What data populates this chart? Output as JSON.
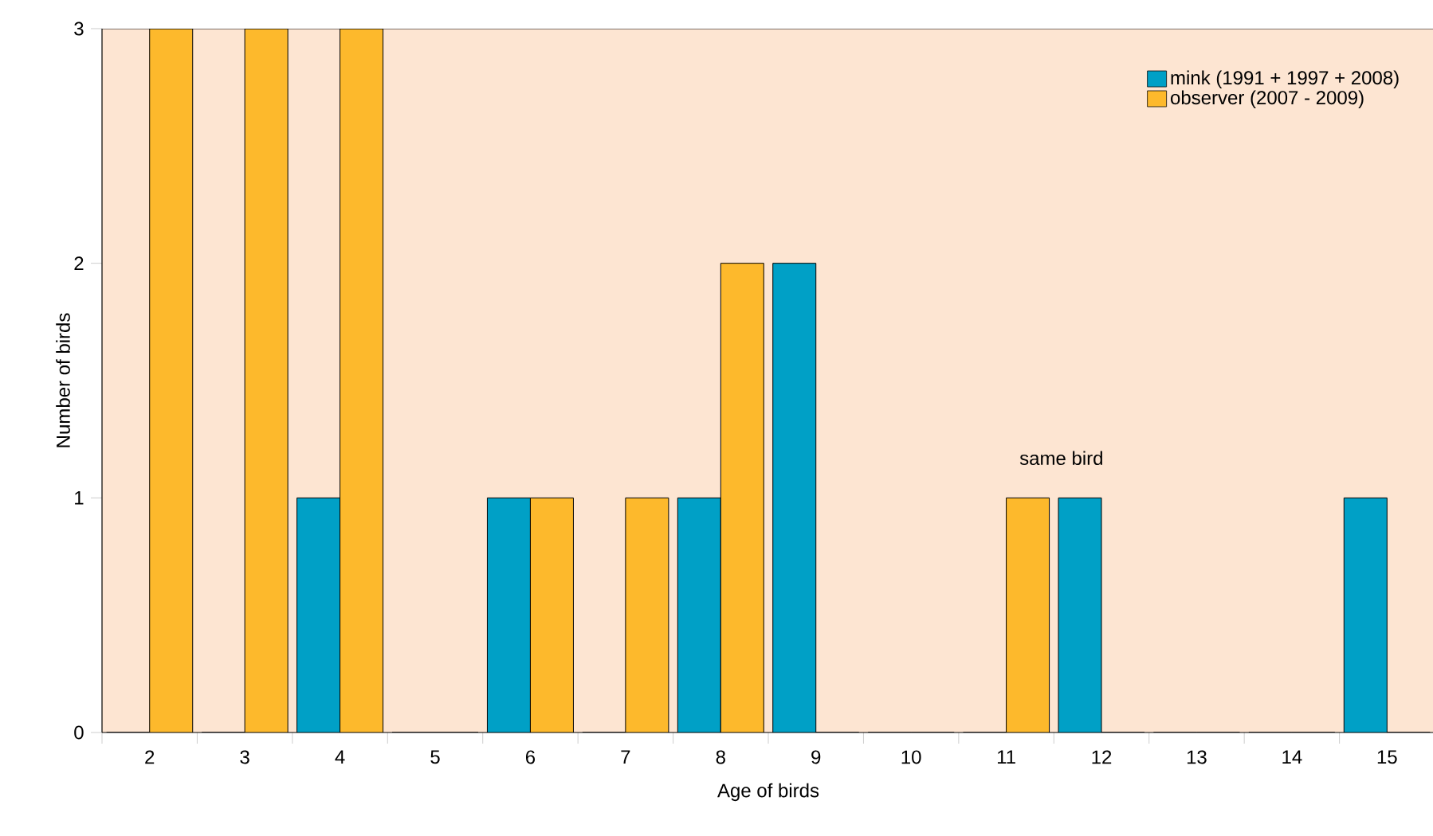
{
  "chart_data": {
    "type": "bar",
    "xlabel": "Age of birds",
    "ylabel": "Number of birds",
    "categories": [
      "2",
      "3",
      "4",
      "5",
      "6",
      "7",
      "8",
      "9",
      "10",
      "11",
      "12",
      "13",
      "14",
      "15"
    ],
    "series": [
      {
        "name": "mink (1991 + 1997 + 2008)",
        "color": "#00a0c6",
        "values": [
          0,
          0,
          1,
          0,
          1,
          0,
          1,
          2,
          0,
          0,
          1,
          0,
          0,
          1
        ]
      },
      {
        "name": "observer (2007 - 2009)",
        "color": "#fdb92c",
        "values": [
          3,
          3,
          3,
          0,
          1,
          1,
          2,
          0,
          0,
          1,
          0,
          0,
          0,
          0
        ]
      }
    ],
    "ylim": [
      0,
      3
    ],
    "yticks": [
      0,
      1,
      2,
      3
    ],
    "grid": false,
    "legend": "top right",
    "annotations": [
      "same bird"
    ]
  }
}
